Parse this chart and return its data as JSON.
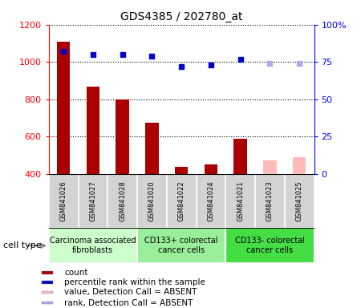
{
  "title": "GDS4385 / 202780_at",
  "samples": [
    "GSM841026",
    "GSM841027",
    "GSM841028",
    "GSM841020",
    "GSM841022",
    "GSM841024",
    "GSM841021",
    "GSM841023",
    "GSM841025"
  ],
  "bar_values": [
    1110,
    870,
    800,
    675,
    440,
    450,
    590,
    null,
    null
  ],
  "bar_absent_values": [
    null,
    null,
    null,
    null,
    null,
    null,
    null,
    475,
    490
  ],
  "dot_values": [
    82,
    80,
    80,
    79,
    72,
    73,
    77,
    null,
    null
  ],
  "dot_absent_values": [
    null,
    null,
    null,
    null,
    null,
    null,
    null,
    74,
    74
  ],
  "ylim_left": [
    400,
    1200
  ],
  "ylim_right": [
    0,
    100
  ],
  "yticks_left": [
    400,
    600,
    800,
    1000,
    1200
  ],
  "yticks_right": [
    0,
    25,
    50,
    75,
    100
  ],
  "groups": [
    {
      "label": "Carcinoma associated\nfibroblasts",
      "start": 0,
      "end": 3,
      "color": "#ccffcc"
    },
    {
      "label": "CD133+ colorectal\ncancer cells",
      "start": 3,
      "end": 6,
      "color": "#99ee99"
    },
    {
      "label": "CD133- colorectal\ncancer cells",
      "start": 6,
      "end": 9,
      "color": "#44dd44"
    }
  ],
  "bar_color": "#aa0000",
  "bar_absent_color": "#ffbbbb",
  "dot_color": "#0000cc",
  "dot_absent_color": "#aaaaee",
  "bar_width": 0.45,
  "cell_type_label": "cell type",
  "legend_items": [
    {
      "label": "count",
      "color": "#aa0000"
    },
    {
      "label": "percentile rank within the sample",
      "color": "#0000cc"
    },
    {
      "label": "value, Detection Call = ABSENT",
      "color": "#ffbbbb"
    },
    {
      "label": "rank, Detection Call = ABSENT",
      "color": "#aaaaee"
    }
  ]
}
